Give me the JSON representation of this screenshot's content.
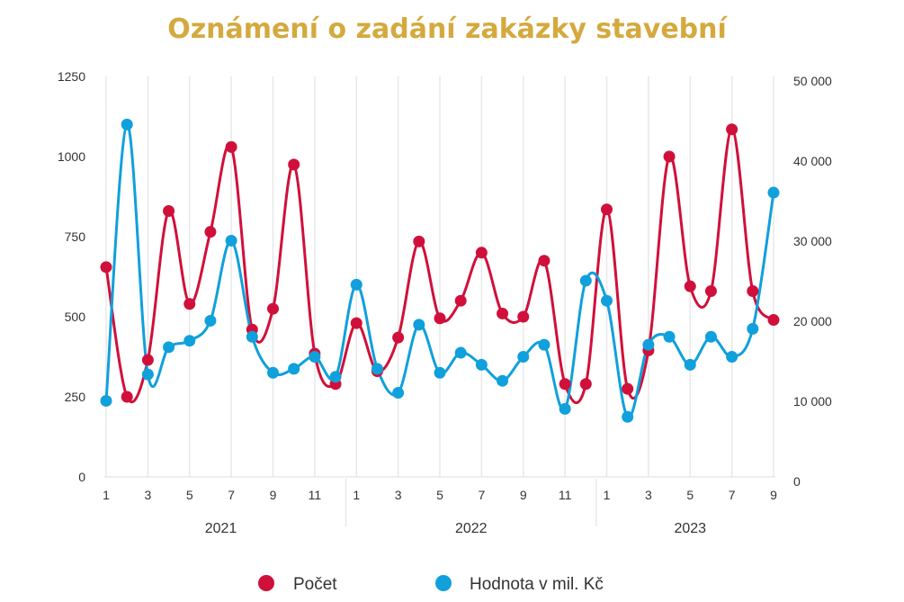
{
  "chart_data": {
    "type": "line",
    "title": "Oznámení o zadání zakázky stavební",
    "x": [
      1,
      2,
      3,
      4,
      5,
      6,
      7,
      8,
      9,
      10,
      11,
      12,
      1,
      2,
      3,
      4,
      5,
      6,
      7,
      8,
      9,
      10,
      11,
      12,
      1,
      2,
      3,
      4,
      5,
      6,
      7,
      8,
      9
    ],
    "x_tick_labels": [
      "1",
      "3",
      "5",
      "7",
      "9",
      "11",
      "1",
      "3",
      "5",
      "7",
      "9",
      "11",
      "1",
      "3",
      "5",
      "7",
      "9"
    ],
    "years": [
      "2021",
      "2022",
      "2023"
    ],
    "y_left": {
      "ticks": [
        "0",
        "250",
        "500",
        "750",
        "1000",
        "1250"
      ],
      "range": [
        0,
        1250
      ]
    },
    "y_right": {
      "ticks": [
        "0",
        "10 000",
        "20 000",
        "30 000",
        "40 000",
        "50 000"
      ],
      "range": [
        0,
        50000
      ]
    },
    "series": [
      {
        "name": "Počet",
        "axis": "left",
        "color": "#d0103a",
        "values": [
          655,
          250,
          365,
          830,
          540,
          765,
          1030,
          460,
          525,
          975,
          385,
          290,
          480,
          330,
          435,
          735,
          495,
          550,
          700,
          510,
          500,
          675,
          290,
          290,
          835,
          275,
          395,
          1000,
          595,
          580,
          1085,
          580,
          490
        ]
      },
      {
        "name": "Hodnota v mil. Kč",
        "axis": "right",
        "color": "#10a0dc",
        "values": [
          9500,
          44000,
          12800,
          16200,
          17000,
          19500,
          29500,
          17500,
          13000,
          13500,
          15000,
          12500,
          24000,
          13500,
          10500,
          19000,
          13000,
          15500,
          14000,
          12000,
          15000,
          16500,
          8500,
          24500,
          22000,
          7500,
          16500,
          17500,
          14000,
          17500,
          15000,
          18500,
          35500
        ]
      }
    ],
    "legend_position": "bottom"
  }
}
